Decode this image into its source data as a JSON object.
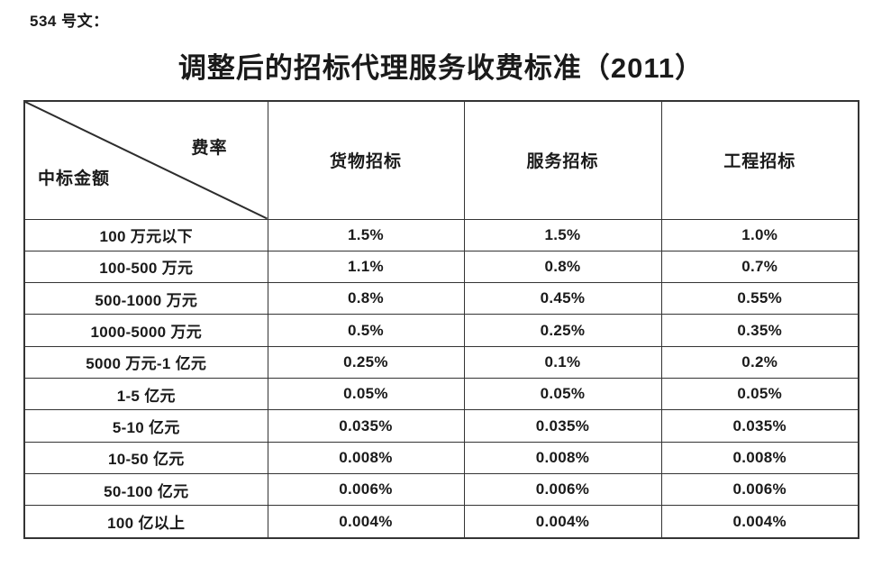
{
  "doc_label": "534 号文：",
  "title": "调整后的招标代理服务收费标准（2011）",
  "table": {
    "corner": {
      "top_right": "费率",
      "bottom_left": "中标金额"
    },
    "columns": [
      "货物招标",
      "服务招标",
      "工程招标"
    ],
    "rows": [
      {
        "label": "100 万元以下",
        "values": [
          "1.5%",
          "1.5%",
          "1.0%"
        ]
      },
      {
        "label": "100-500 万元",
        "values": [
          "1.1%",
          "0.8%",
          "0.7%"
        ]
      },
      {
        "label": "500-1000 万元",
        "values": [
          "0.8%",
          "0.45%",
          "0.55%"
        ]
      },
      {
        "label": "1000-5000 万元",
        "values": [
          "0.5%",
          "0.25%",
          "0.35%"
        ]
      },
      {
        "label": "5000 万元-1 亿元",
        "values": [
          "0.25%",
          "0.1%",
          "0.2%"
        ]
      },
      {
        "label": "1-5 亿元",
        "values": [
          "0.05%",
          "0.05%",
          "0.05%"
        ]
      },
      {
        "label": "5-10 亿元",
        "values": [
          "0.035%",
          "0.035%",
          "0.035%"
        ]
      },
      {
        "label": "10-50 亿元",
        "values": [
          "0.008%",
          "0.008%",
          "0.008%"
        ]
      },
      {
        "label": "50-100 亿元",
        "values": [
          "0.006%",
          "0.006%",
          "0.006%"
        ]
      },
      {
        "label": "100 亿以上",
        "values": [
          "0.004%",
          "0.004%",
          "0.004%"
        ]
      }
    ]
  },
  "colors": {
    "text": "#1a1a1a",
    "border": "#343434",
    "background": "#ffffff"
  }
}
